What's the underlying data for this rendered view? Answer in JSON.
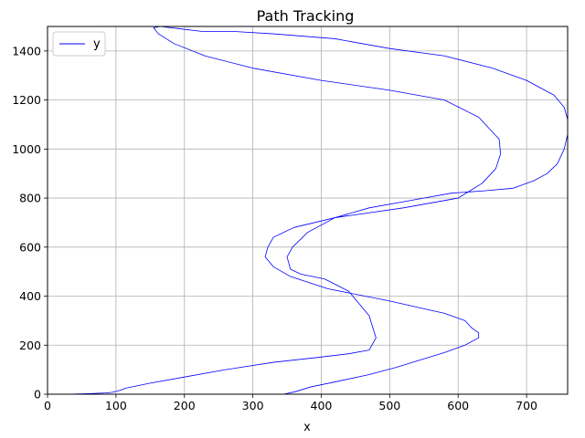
{
  "chart_data": {
    "type": "line",
    "title": "Path Tracking",
    "xlabel": "x",
    "ylabel": "",
    "xlim": [
      0,
      760
    ],
    "ylim": [
      0,
      1500
    ],
    "xticks": [
      0,
      100,
      200,
      300,
      400,
      500,
      600,
      700
    ],
    "yticks": [
      0,
      200,
      400,
      600,
      800,
      1000,
      1200,
      1400
    ],
    "grid": true,
    "legend_position": "top-left",
    "series": [
      {
        "name": "y",
        "color": "#0000ff",
        "x": [
          0,
          30,
          60,
          85,
          95,
          105,
          115,
          150,
          200,
          260,
          330,
          395,
          440,
          470,
          480,
          470,
          440,
          405,
          370,
          355,
          350,
          358,
          380,
          420,
          470,
          530,
          590,
          640,
          680,
          710,
          730,
          745,
          755,
          760,
          760,
          755,
          740,
          700,
          650,
          580,
          500,
          420,
          330,
          270,
          225,
          195,
          165,
          155,
          162,
          185,
          230,
          300,
          400,
          500,
          580,
          630,
          660,
          662,
          655,
          635,
          600,
          520,
          420,
          360,
          330,
          322,
          318,
          330,
          355,
          410,
          500,
          580,
          610,
          620,
          630,
          630,
          610,
          580,
          545,
          510,
          470,
          420,
          385,
          362,
          345,
          335,
          318,
          300,
          280,
          240,
          190,
          140,
          100,
          60,
          30,
          10,
          0
        ],
        "y": [
          0,
          0,
          2,
          5,
          8,
          15,
          25,
          45,
          70,
          100,
          130,
          150,
          165,
          180,
          230,
          320,
          420,
          470,
          490,
          510,
          560,
          600,
          660,
          720,
          760,
          790,
          820,
          830,
          840,
          870,
          900,
          940,
          1000,
          1060,
          1120,
          1170,
          1220,
          1280,
          1330,
          1380,
          1410,
          1450,
          1470,
          1480,
          1480,
          1490,
          1500,
          1495,
          1470,
          1430,
          1380,
          1330,
          1280,
          1240,
          1200,
          1130,
          1040,
          980,
          920,
          860,
          800,
          760,
          720,
          680,
          640,
          600,
          560,
          520,
          480,
          430,
          380,
          330,
          300,
          270,
          250,
          230,
          200,
          170,
          140,
          110,
          80,
          50,
          30,
          10,
          0,
          0,
          0,
          0,
          0,
          0,
          0,
          0,
          0,
          0,
          0,
          0,
          0
        ]
      }
    ]
  }
}
